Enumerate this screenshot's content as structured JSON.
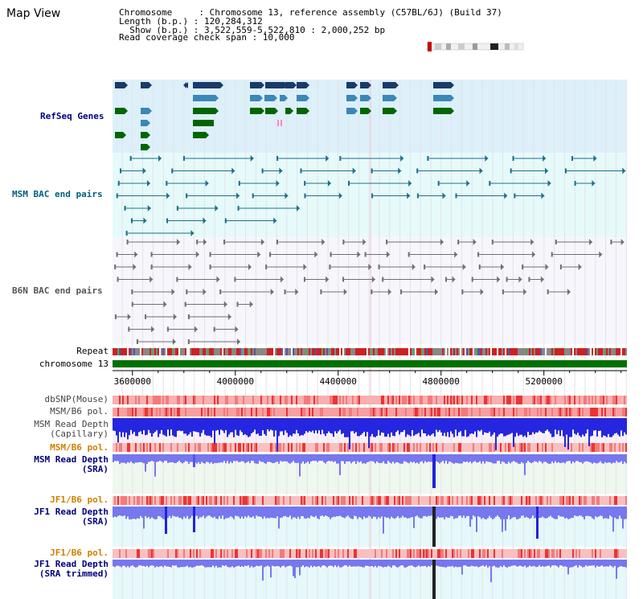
{
  "header": {
    "title": "Map View",
    "chromosome_line": "Chromosome     : Chromosome 13, reference assembly (C57BL/6J) (Build 37)",
    "length_line": "Length (b.p.) : 120,284,312",
    "show_line": "  Show (b.p.) : 3,522,559-5,522,810 : 2,000,252 bp",
    "coverage_line": "Read coverage check span : 10,000"
  },
  "tracks": {
    "refseq": "RefSeq Genes",
    "msm_bac": "MSM BAC end pairs",
    "b6n_bac": "B6N BAC end pairs",
    "repeat": "Repeat",
    "chromosome": "chromosome 13",
    "dbsnp": "dbSNP(Mouse)",
    "msm_b6_pol_1": "MSM/B6 pol.",
    "msm_depth_cap_1": "MSM Read Depth",
    "msm_depth_cap_2": "(Capillary)",
    "msm_b6_pol_2": "MSM/B6 pol.",
    "msm_depth_sra_1": "MSM Read Depth",
    "msm_depth_sra_2": "(SRA)",
    "jf1_b6_pol_1": "JF1/B6 pol.",
    "jf1_depth_sra_1": "JF1 Read Depth",
    "jf1_depth_sra_2": "(SRA)",
    "jf1_b6_pol_2": "JF1/B6 pol.",
    "jf1_depth_trim_1": "JF1 Read Depth",
    "jf1_depth_trim_2": "(SRA trimmed)"
  },
  "axis": {
    "ticks": [
      "3600000",
      "4000000",
      "4400000",
      "4800000",
      "5200000"
    ],
    "tick_values": [
      3600000,
      4000000,
      4400000,
      4800000,
      5200000
    ],
    "range": [
      3522559,
      5522810
    ]
  },
  "colors": {
    "refseq_bg": "#ddf0fa",
    "msm_bg": "#e6fafa",
    "b6n_bg": "#f6f6fc",
    "gene_dark": "#1a3a6a",
    "gene_mid": "#3a88b8",
    "gene_green": "#006600",
    "bac_teal": "#1b7088",
    "bac_gray": "#707070",
    "chromosome_bar": "#007000",
    "depth_blue": "#2222dd",
    "depth_light": "#7777ee",
    "label_navy": "#000080",
    "label_orange": "#d08000",
    "label_teal": "#006080"
  }
}
